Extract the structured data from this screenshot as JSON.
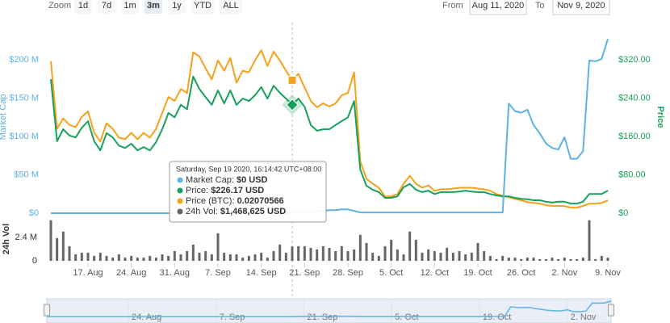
{
  "controls": {
    "zoom_label": "Zoom",
    "zoom_buttons": [
      "1d",
      "7d",
      "1m",
      "3m",
      "1y",
      "YTD",
      "ALL"
    ],
    "selected": "3m",
    "from_label": "From",
    "from": "Aug 11, 2020",
    "to_label": "To",
    "to": "Nov 9, 2020"
  },
  "chart_data": [
    {
      "type": "line",
      "x": [
        "2020-08-11",
        "2020-08-12",
        "2020-08-13",
        "2020-08-14",
        "2020-08-15",
        "2020-08-16",
        "2020-08-17",
        "2020-08-18",
        "2020-08-19",
        "2020-08-20",
        "2020-08-21",
        "2020-08-22",
        "2020-08-23",
        "2020-08-24",
        "2020-08-25",
        "2020-08-26",
        "2020-08-27",
        "2020-08-28",
        "2020-08-29",
        "2020-08-30",
        "2020-08-31",
        "2020-09-01",
        "2020-09-02",
        "2020-09-03",
        "2020-09-04",
        "2020-09-05",
        "2020-09-06",
        "2020-09-07",
        "2020-09-08",
        "2020-09-09",
        "2020-09-10",
        "2020-09-11",
        "2020-09-12",
        "2020-09-13",
        "2020-09-14",
        "2020-09-15",
        "2020-09-16",
        "2020-09-17",
        "2020-09-18",
        "2020-09-19",
        "2020-09-20",
        "2020-09-21",
        "2020-09-22",
        "2020-09-23",
        "2020-09-24",
        "2020-09-25",
        "2020-09-26",
        "2020-09-27",
        "2020-09-28",
        "2020-09-29",
        "2020-09-30",
        "2020-10-01",
        "2020-10-02",
        "2020-10-03",
        "2020-10-04",
        "2020-10-05",
        "2020-10-06",
        "2020-10-07",
        "2020-10-08",
        "2020-10-09",
        "2020-10-10",
        "2020-10-11",
        "2020-10-12",
        "2020-10-13",
        "2020-10-14",
        "2020-10-15",
        "2020-10-16",
        "2020-10-17",
        "2020-10-18",
        "2020-10-19",
        "2020-10-20",
        "2020-10-21",
        "2020-10-22",
        "2020-10-23",
        "2020-10-24",
        "2020-10-25",
        "2020-10-26",
        "2020-10-27",
        "2020-10-28",
        "2020-10-29",
        "2020-10-30",
        "2020-10-31",
        "2020-11-01",
        "2020-11-02",
        "2020-11-03",
        "2020-11-04",
        "2020-11-05",
        "2020-11-06",
        "2020-11-07",
        "2020-11-08",
        "2020-11-09"
      ],
      "xlim": [
        "2020-08-11",
        "2020-11-09"
      ],
      "ylabel": "Market Cap",
      "y2label": "Price",
      "ylim": [
        0,
        250
      ],
      "yticks": [
        {
          "value": 0,
          "label": "$0"
        },
        {
          "value": 50,
          "label": "$50 M"
        },
        {
          "value": 100,
          "label": "$100 M"
        },
        {
          "value": 150,
          "label": "$150 M"
        },
        {
          "value": 200,
          "label": "$200 M"
        }
      ],
      "y2lim": [
        0,
        400
      ],
      "y2ticks": [
        {
          "value": 0,
          "label": "$0"
        },
        {
          "value": 80,
          "label": "$80.00"
        },
        {
          "value": 160,
          "label": "$160.00"
        },
        {
          "value": 240,
          "label": "$240.00"
        },
        {
          "value": 320,
          "label": "$320.00"
        }
      ],
      "y3lim": [
        0.004,
        0.0281
      ],
      "series": [
        {
          "name": "Market Cap",
          "color": "#5db3e4",
          "values": [
            0,
            0,
            0,
            0,
            0,
            0,
            0,
            0,
            0,
            0,
            0,
            0,
            0,
            0,
            0,
            0,
            0,
            0,
            0,
            0,
            0,
            0,
            0,
            0,
            0,
            0,
            0,
            0,
            0,
            0,
            0,
            0,
            0,
            0,
            0,
            0,
            0,
            0,
            0,
            0,
            1,
            2,
            2,
            3,
            3,
            4,
            4,
            5,
            5,
            3,
            1,
            1,
            1,
            1,
            1,
            1,
            1,
            1,
            1,
            1,
            1,
            1,
            1,
            1,
            1,
            1,
            1,
            1,
            1,
            1,
            1,
            1,
            1,
            1,
            143,
            133,
            131,
            135,
            115,
            104,
            91,
            85,
            83,
            99,
            71,
            71,
            81,
            199,
            198,
            201,
            227
          ]
        },
        {
          "name": "Price",
          "color": "#16a05c",
          "axis": "y2",
          "values": [
            279.5,
            150,
            175,
            162,
            158,
            178,
            192,
            150,
            131,
            167,
            158,
            141,
            136,
            145,
            131,
            138,
            131,
            148,
            175,
            209,
            200,
            226,
            217,
            285,
            259,
            242,
            226,
            256,
            229,
            256,
            226,
            239,
            234,
            246,
            263,
            239,
            266,
            251,
            239,
            226.17,
            239,
            222,
            184,
            172,
            175,
            175,
            184,
            192,
            200,
            234,
            91,
            57,
            49,
            44,
            32,
            32,
            35,
            54,
            61,
            49,
            44,
            47,
            40,
            44,
            44,
            44,
            45,
            47,
            45,
            44,
            44,
            40,
            37,
            35,
            35,
            32,
            30,
            29,
            27,
            27,
            24,
            22,
            24,
            24,
            20,
            20,
            24,
            40,
            40,
            40,
            47
          ]
        },
        {
          "name": "Price (BTC)",
          "color": "#f7a11a",
          "axis": "y3",
          "values": [
            0.0231,
            0.0146,
            0.0159,
            0.0151,
            0.0148,
            0.0161,
            0.0168,
            0.0141,
            0.013,
            0.0153,
            0.0146,
            0.0135,
            0.0133,
            0.0141,
            0.0133,
            0.0141,
            0.0135,
            0.0146,
            0.0166,
            0.0186,
            0.0181,
            0.0196,
            0.0191,
            0.0242,
            0.0237,
            0.0222,
            0.0208,
            0.0232,
            0.0219,
            0.0235,
            0.0204,
            0.0219,
            0.0217,
            0.0232,
            0.0245,
            0.0225,
            0.0243,
            0.0232,
            0.0219,
            0.02070566,
            0.0215,
            0.0198,
            0.0181,
            0.0173,
            0.0178,
            0.0174,
            0.0178,
            0.0188,
            0.0191,
            0.0217,
            0.0105,
            0.0083,
            0.0077,
            0.0072,
            0.0061,
            0.0061,
            0.0064,
            0.0077,
            0.0087,
            0.0077,
            0.0072,
            0.0075,
            0.0068,
            0.007,
            0.007,
            0.0071,
            0.0072,
            0.0072,
            0.0072,
            0.0071,
            0.007,
            0.0068,
            0.0064,
            0.0062,
            0.006,
            0.0058,
            0.0056,
            0.0054,
            0.0053,
            0.0052,
            0.005,
            0.0049,
            0.0049,
            0.0049,
            0.0047,
            0.0047,
            0.0049,
            0.0052,
            0.0052,
            0.0053,
            0.0056
          ]
        }
      ],
      "hover_index": 39
    },
    {
      "type": "bar",
      "x": [
        "2020-08-11",
        "2020-08-12",
        "2020-08-13",
        "2020-08-14",
        "2020-08-15",
        "2020-08-16",
        "2020-08-17",
        "2020-08-18",
        "2020-08-19",
        "2020-08-20",
        "2020-08-21",
        "2020-08-22",
        "2020-08-23",
        "2020-08-24",
        "2020-08-25",
        "2020-08-26",
        "2020-08-27",
        "2020-08-28",
        "2020-08-29",
        "2020-08-30",
        "2020-08-31",
        "2020-09-01",
        "2020-09-02",
        "2020-09-03",
        "2020-09-04",
        "2020-09-05",
        "2020-09-06",
        "2020-09-07",
        "2020-09-08",
        "2020-09-09",
        "2020-09-10",
        "2020-09-11",
        "2020-09-12",
        "2020-09-13",
        "2020-09-14",
        "2020-09-15",
        "2020-09-16",
        "2020-09-17",
        "2020-09-18",
        "2020-09-19",
        "2020-09-20",
        "2020-09-21",
        "2020-09-22",
        "2020-09-23",
        "2020-09-24",
        "2020-09-25",
        "2020-09-26",
        "2020-09-27",
        "2020-09-28",
        "2020-09-29",
        "2020-09-30",
        "2020-10-01",
        "2020-10-02",
        "2020-10-03",
        "2020-10-04",
        "2020-10-05",
        "2020-10-06",
        "2020-10-07",
        "2020-10-08",
        "2020-10-09",
        "2020-10-10",
        "2020-10-11",
        "2020-10-12",
        "2020-10-13",
        "2020-10-14",
        "2020-10-15",
        "2020-10-16",
        "2020-10-17",
        "2020-10-18",
        "2020-10-19",
        "2020-10-20",
        "2020-10-21",
        "2020-10-22",
        "2020-10-23",
        "2020-10-24",
        "2020-10-25",
        "2020-10-26",
        "2020-10-27",
        "2020-10-28",
        "2020-10-29",
        "2020-10-30",
        "2020-10-31",
        "2020-11-01",
        "2020-11-02",
        "2020-11-03",
        "2020-11-04",
        "2020-11-05",
        "2020-11-06",
        "2020-11-07",
        "2020-11-08",
        "2020-11-09"
      ],
      "xlim": [
        "2020-08-11",
        "2020-11-09"
      ],
      "xticks": [
        {
          "value": "2020-08-17",
          "label": "17. Aug"
        },
        {
          "value": "2020-08-24",
          "label": "24. Aug"
        },
        {
          "value": "2020-08-31",
          "label": "31. Aug"
        },
        {
          "value": "2020-09-07",
          "label": "7. Sep"
        },
        {
          "value": "2020-09-14",
          "label": "14. Sep"
        },
        {
          "value": "2020-09-21",
          "label": "21. Sep"
        },
        {
          "value": "2020-09-28",
          "label": "28. Sep"
        },
        {
          "value": "2020-10-05",
          "label": "5. Oct"
        },
        {
          "value": "2020-10-12",
          "label": "12. Oct"
        },
        {
          "value": "2020-10-19",
          "label": "19. Oct"
        },
        {
          "value": "2020-10-26",
          "label": "26. Oct"
        },
        {
          "value": "2020-11-02",
          "label": "2. Nov"
        },
        {
          "value": "2020-11-09",
          "label": "9. Nov"
        }
      ],
      "ylabel": "24h Vol",
      "ylim": [
        0,
        4200000
      ],
      "yticks": [
        0,
        {
          "value": 2400000,
          "label": "2.4 M"
        }
      ],
      "color": "#666666",
      "values": [
        4140000,
        2320000,
        2980000,
        1490000,
        660000,
        830000,
        830000,
        500000,
        830000,
        500000,
        330000,
        660000,
        330000,
        500000,
        330000,
        330000,
        500000,
        330000,
        660000,
        500000,
        990000,
        660000,
        990000,
        1660000,
        830000,
        990000,
        660000,
        2810000,
        830000,
        660000,
        660000,
        330000,
        500000,
        660000,
        830000,
        330000,
        990000,
        1660000,
        830000,
        1468625,
        1490000,
        1490000,
        1320000,
        1160000,
        1490000,
        1320000,
        990000,
        1490000,
        990000,
        1160000,
        2650000,
        1820000,
        830000,
        500000,
        1490000,
        2150000,
        1160000,
        660000,
        2980000,
        2150000,
        830000,
        1160000,
        990000,
        830000,
        1320000,
        830000,
        990000,
        660000,
        830000,
        1820000,
        990000,
        500000,
        170000,
        500000,
        330000,
        330000,
        170000,
        330000,
        330000,
        170000,
        170000,
        330000,
        170000,
        330000,
        170000,
        170000,
        330000,
        4140000,
        170000,
        500000,
        330000
      ]
    },
    {
      "type": "navigator",
      "xlim": [
        "2020-08-11",
        "2020-11-09"
      ],
      "xticks": [
        {
          "value": "2020-08-24",
          "label": "24. Aug"
        },
        {
          "value": "2020-09-07",
          "label": "7. Sep"
        },
        {
          "value": "2020-09-21",
          "label": "21. Sep"
        },
        {
          "value": "2020-10-05",
          "label": "5. Oct"
        },
        {
          "value": "2020-10-19",
          "label": "19. Oct"
        },
        {
          "value": "2020-11-02",
          "label": "2. Nov"
        }
      ]
    }
  ],
  "tooltip": {
    "title": "Saturday, Sep 19 2020, 16:14:42 UTC+08:00",
    "items": [
      {
        "label": "Market Cap: ",
        "value": "$0 USD"
      },
      {
        "label": "Price: ",
        "value": "$226.17 USD"
      },
      {
        "label": "Price (BTC): ",
        "value": "0.02070566"
      },
      {
        "label": "24h Vol: ",
        "value": "$1,468,625 USD"
      }
    ]
  }
}
